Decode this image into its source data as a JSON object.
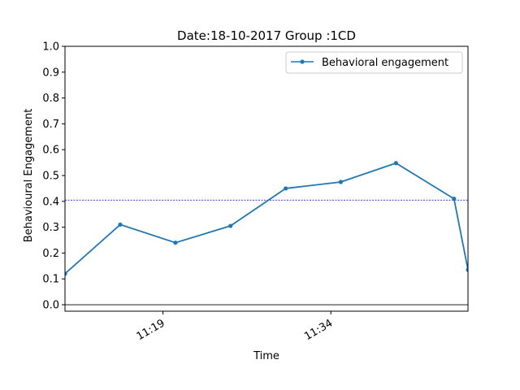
{
  "chart_data": {
    "type": "line",
    "title": "Date:18-10-2017 Group :1CD",
    "xlabel": "Time",
    "ylabel": "Behavioural Engagement",
    "xlim": [
      "11:10:15",
      "11:46:15"
    ],
    "ylim": [
      -0.025,
      1.0
    ],
    "yticks": [
      "0.0",
      "0.1",
      "0.2",
      "0.3",
      "0.4",
      "0.5",
      "0.6",
      "0.7",
      "0.8",
      "0.9",
      "1.0"
    ],
    "xticks": [
      "11:19",
      "11:34"
    ],
    "legend": {
      "position": "top-right"
    },
    "grid": false,
    "series": [
      {
        "name": "Behavioral engagement",
        "color": "#1f77b4",
        "marker": "dot",
        "x": [
          "11:10:15",
          "11:15:11",
          "11:20:07",
          "11:25:02",
          "11:29:58",
          "11:34:53",
          "11:39:49",
          "11:45:00",
          "11:46:15"
        ],
        "y": [
          0.12,
          0.31,
          0.24,
          0.305,
          0.45,
          0.475,
          0.548,
          0.41,
          0.135
        ]
      }
    ],
    "reference_lines": [
      {
        "orientation": "horizontal",
        "y": 0.405,
        "color": "#0000cc",
        "style": "dashed"
      },
      {
        "orientation": "horizontal",
        "y": 0.0,
        "color": "#000000",
        "style": "solid"
      }
    ]
  }
}
